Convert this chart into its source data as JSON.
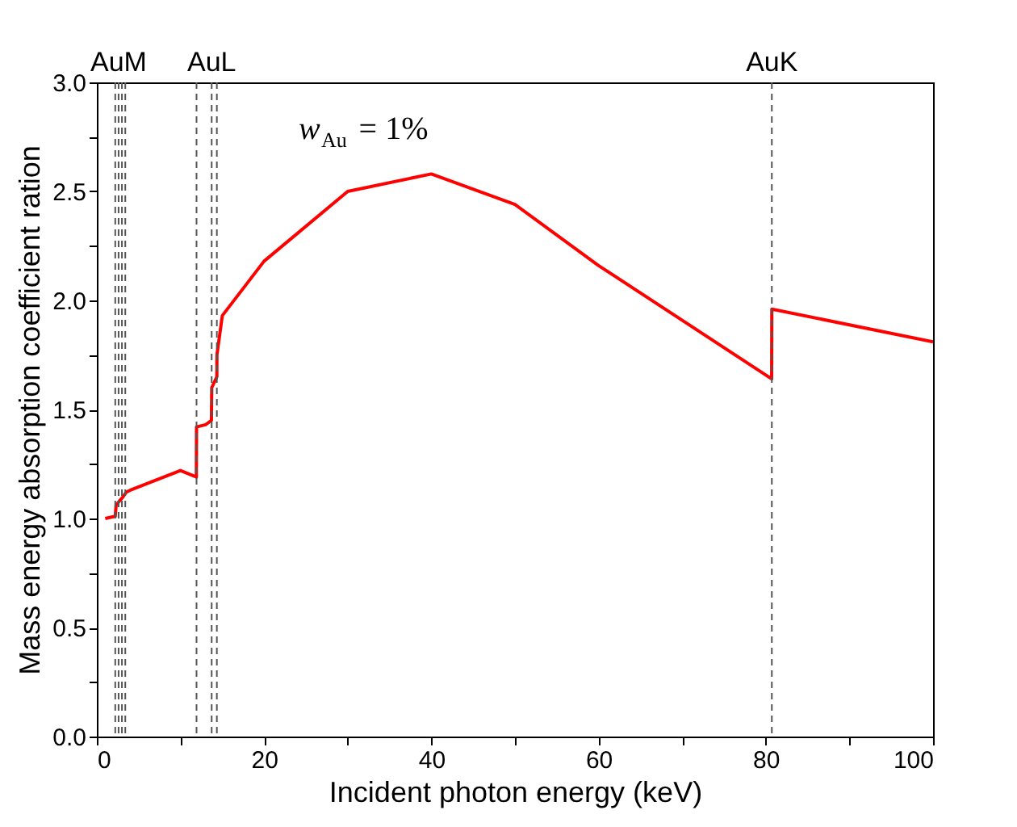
{
  "chart_data": {
    "type": "line",
    "xlabel": "Incident photon energy (keV)",
    "ylabel": "Mass energy absorption coefficient ration",
    "x": [
      1,
      2.2,
      2.3,
      2.7,
      3.15,
      3.5,
      4,
      10,
      11.9,
      11.92,
      13,
      13.7,
      13.74,
      14.35,
      14.36,
      15,
      20,
      30,
      40,
      50,
      60,
      80.7,
      80.72,
      100
    ],
    "series": [
      {
        "color": "#ff0000",
        "values": [
          1.0,
          1.01,
          1.06,
          1.08,
          1.1,
          1.12,
          1.13,
          1.22,
          1.19,
          1.42,
          1.43,
          1.45,
          1.6,
          1.65,
          1.75,
          1.93,
          2.18,
          2.5,
          2.58,
          2.44,
          2.16,
          1.64,
          1.96,
          1.81
        ]
      }
    ],
    "xlim": [
      0,
      100
    ],
    "ylim": [
      0,
      3
    ],
    "xticks": [
      0,
      {
        "value": 10,
        "label": null
      },
      20,
      {
        "value": 30,
        "label": null
      },
      40,
      {
        "value": 50,
        "label": null
      },
      60,
      {
        "value": 70,
        "label": null
      },
      80,
      {
        "value": 90,
        "label": null
      },
      100
    ],
    "yticks": [
      {
        "value": 0,
        "label": "0.0"
      },
      {
        "value": 0.25,
        "label": null
      },
      {
        "value": 0.5,
        "label": "0.5"
      },
      {
        "value": 0.75,
        "label": null
      },
      {
        "value": 1,
        "label": "1.0"
      },
      {
        "value": 1.25,
        "label": null
      },
      {
        "value": 1.5,
        "label": "1.5"
      },
      {
        "value": 1.75,
        "label": null
      },
      {
        "value": 2,
        "label": "2.0"
      },
      {
        "value": 2.25,
        "label": null
      },
      {
        "value": 2.5,
        "label": "2.5"
      },
      {
        "value": 2.75,
        "label": null
      },
      {
        "value": 3,
        "label": "3.0"
      }
    ],
    "grid": false,
    "line_style": "solid",
    "marker": "none",
    "ref_lines": [
      {
        "axis": "x",
        "value": 2.2,
        "label": null,
        "color": "#555555",
        "line_style": "dashed"
      },
      {
        "axis": "x",
        "value": 2.6,
        "label": "AuM",
        "color": "#555555",
        "line_style": "dashed"
      },
      {
        "axis": "x",
        "value": 3.0,
        "label": null,
        "color": "#555555",
        "line_style": "dashed"
      },
      {
        "axis": "x",
        "value": 3.4,
        "label": null,
        "color": "#555555",
        "line_style": "dashed"
      },
      {
        "axis": "x",
        "value": 11.92,
        "label": null,
        "color": "#555555",
        "line_style": "dashed"
      },
      {
        "axis": "x",
        "value": 13.73,
        "label": "AuL",
        "color": "#555555",
        "line_style": "dashed"
      },
      {
        "axis": "x",
        "value": 14.35,
        "label": null,
        "color": "#555555",
        "line_style": "dashed"
      },
      {
        "axis": "x",
        "value": 80.72,
        "label": "AuK",
        "color": "#555555",
        "line_style": "dashed"
      }
    ],
    "annotations": [
      "w$_{Au}$ = 1%"
    ]
  }
}
